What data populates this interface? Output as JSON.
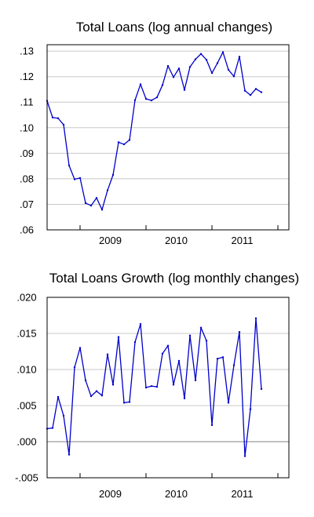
{
  "chart_data": [
    {
      "type": "line",
      "title": "Total Loans (log annual changes)",
      "xlabel": "",
      "ylabel": "",
      "x_tick_labels": [
        "2009",
        "2010",
        "2011"
      ],
      "y_tick_labels": [
        ".06",
        ".07",
        ".08",
        ".09",
        ".10",
        ".11",
        ".12",
        ".13"
      ],
      "y_ticks": [
        0.06,
        0.07,
        0.08,
        0.09,
        0.1,
        0.11,
        0.12,
        0.13
      ],
      "ylim": [
        0.06,
        0.1325
      ],
      "x_start": "2008-07",
      "x_end": "2012-03",
      "grid": true,
      "color": "#0000cc",
      "series": [
        {
          "values": [
            0.1105,
            0.104,
            0.1037,
            0.1012,
            0.0852,
            0.0798,
            0.0803,
            0.0705,
            0.0695,
            0.0725,
            0.0679,
            0.0755,
            0.0815,
            0.0943,
            0.0935,
            0.0952,
            0.1108,
            0.117,
            0.1113,
            0.1107,
            0.1119,
            0.1167,
            0.1242,
            0.1198,
            0.1232,
            0.1148,
            0.1238,
            0.1268,
            0.1289,
            0.1266,
            0.1214,
            0.1253,
            0.1296,
            0.1227,
            0.1201,
            0.1278,
            0.1145,
            0.1128,
            0.1152,
            0.1139
          ]
        }
      ]
    },
    {
      "type": "line",
      "title": "Total Loans Growth (log monthly changes)",
      "xlabel": "",
      "ylabel": "",
      "x_tick_labels": [
        "2009",
        "2010",
        "2011"
      ],
      "y_tick_labels": [
        "-.005",
        ".000",
        ".005",
        ".010",
        ".015",
        ".020"
      ],
      "y_ticks": [
        -0.005,
        0.0,
        0.005,
        0.01,
        0.015,
        0.02
      ],
      "ylim": [
        -0.005,
        0.02
      ],
      "x_start": "2008-07",
      "x_end": "2012-03",
      "grid": true,
      "color": "#0000cc",
      "series": [
        {
          "values": [
            0.0018,
            0.0019,
            0.0062,
            0.0036,
            -0.0018,
            0.0103,
            0.013,
            0.0085,
            0.0063,
            0.007,
            0.0064,
            0.0121,
            0.0079,
            0.0145,
            0.0054,
            0.0055,
            0.0138,
            0.0163,
            0.0075,
            0.0077,
            0.0076,
            0.0122,
            0.0133,
            0.0079,
            0.0112,
            0.006,
            0.0147,
            0.0085,
            0.0158,
            0.014,
            0.0023,
            0.0115,
            0.0117,
            0.0054,
            0.0106,
            0.0152,
            -0.002,
            0.0045,
            0.0171,
            0.0073
          ]
        }
      ]
    }
  ]
}
